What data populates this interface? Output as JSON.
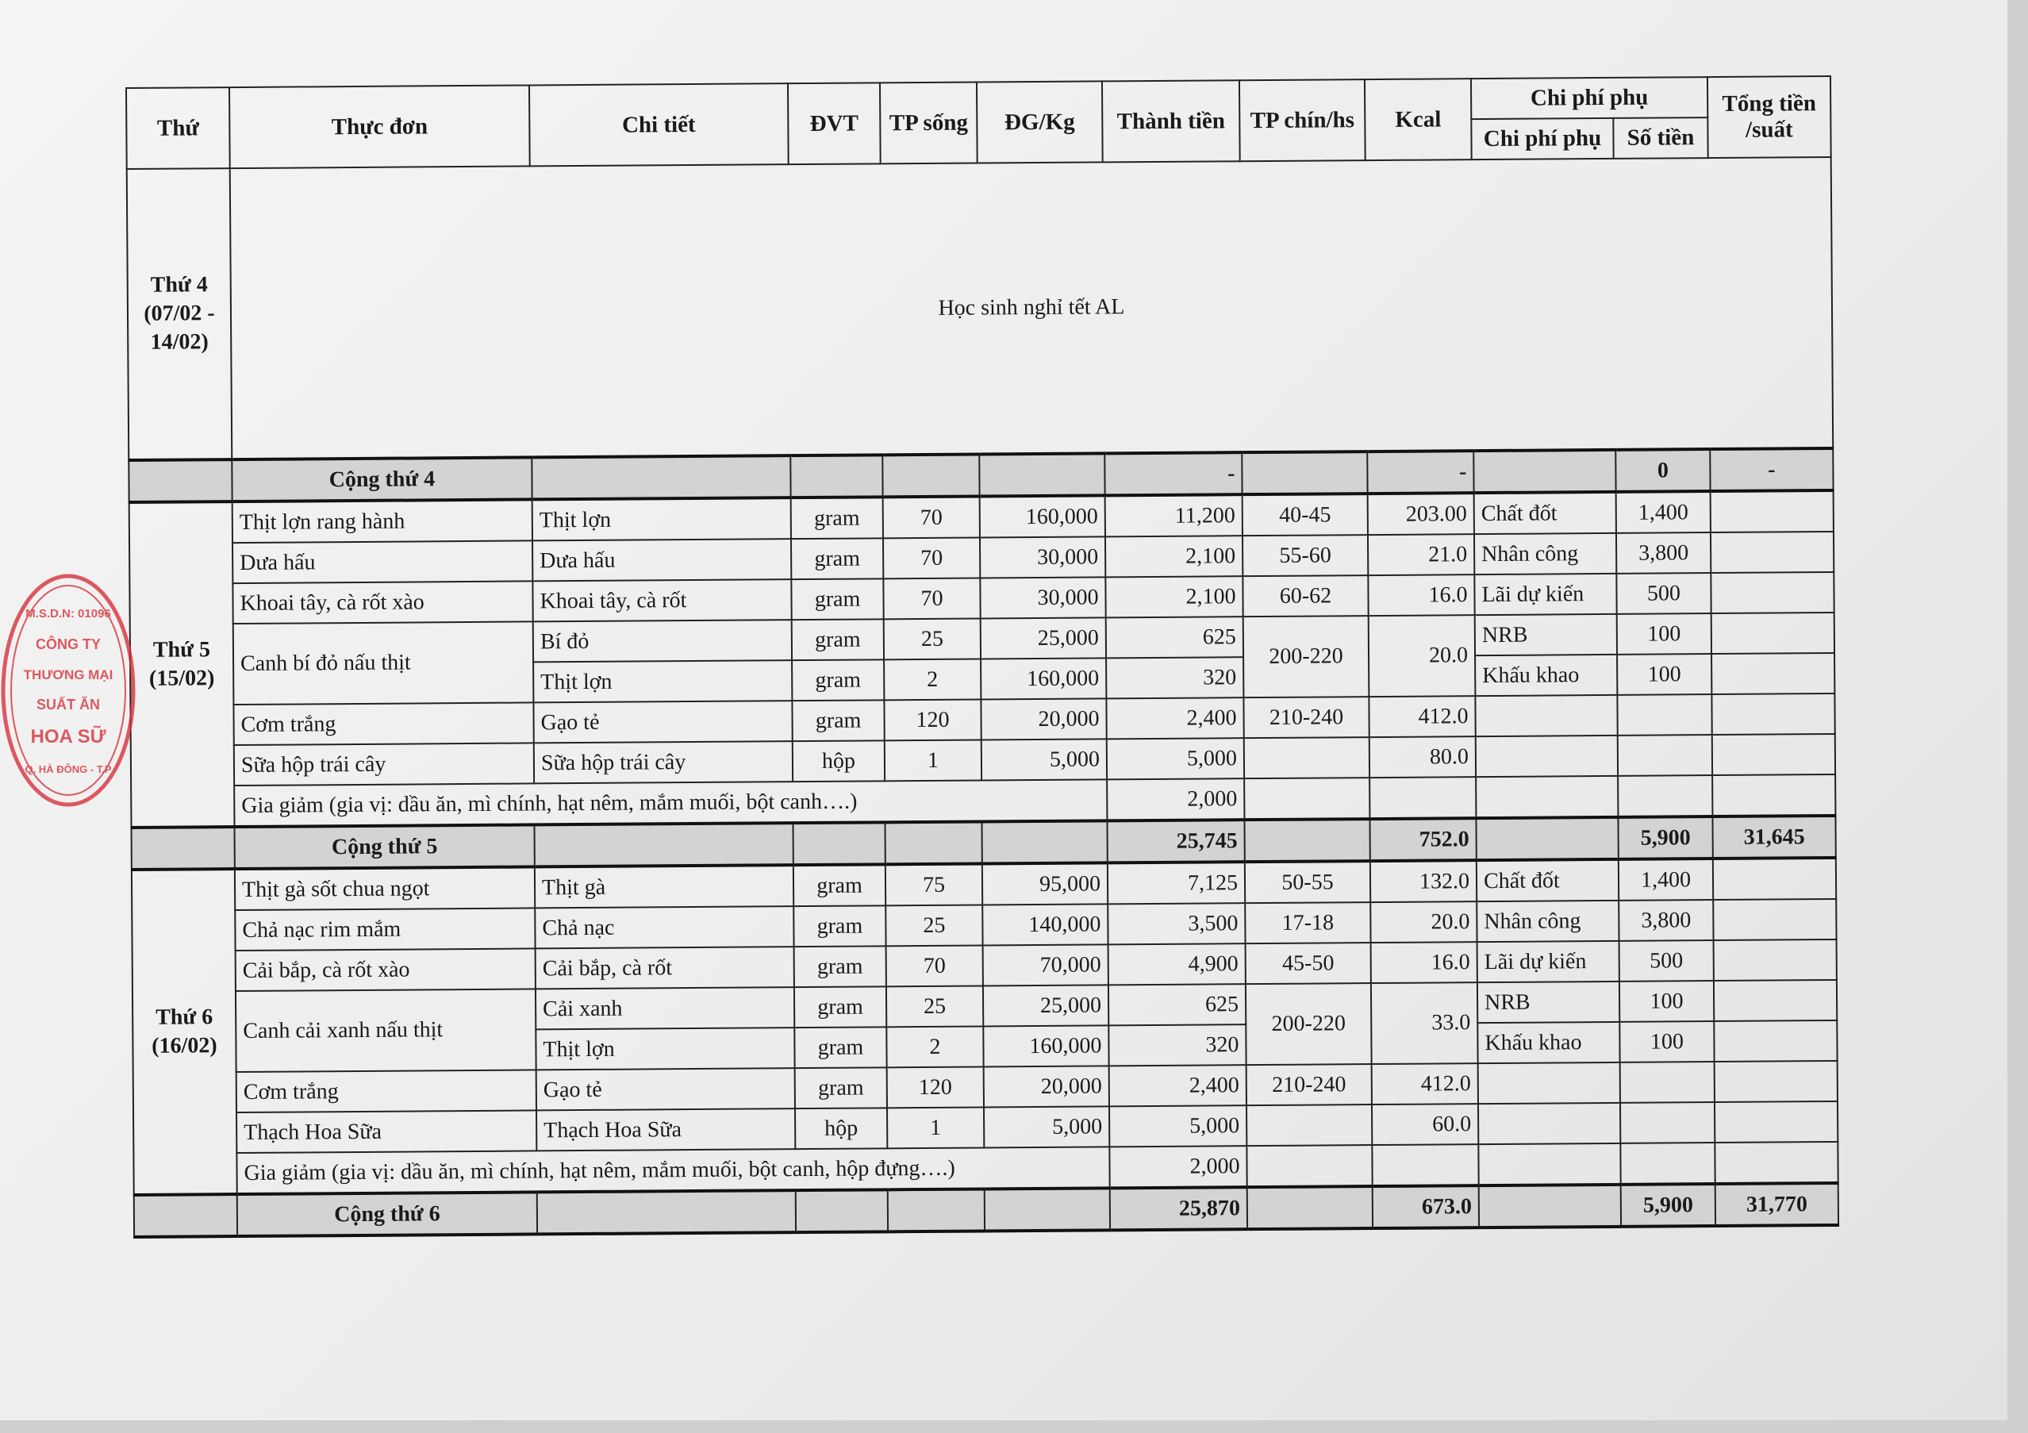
{
  "headers": {
    "thu": "Thứ",
    "thuc_don": "Thực đơn",
    "chi_tiet": "Chi tiết",
    "dvt": "ĐVT",
    "tp_song": "TP sống",
    "dg_kg": "ĐG/Kg",
    "thanh_tien": "Thành tiền",
    "tp_chin": "TP chín/hs",
    "kcal": "Kcal",
    "chi_phi_phu_group": "Chi phí phụ",
    "chi_phi_phu": "Chi phí phụ",
    "so_tien": "Số tiền",
    "tong_tien": "Tổng tiền /suất"
  },
  "days": [
    {
      "day": "Thứ 4 (07/02 - 14/02)",
      "note": "Học sinh nghỉ tết AL",
      "total": {
        "label": "Cộng thứ 4",
        "amount": "-",
        "kcal": "-",
        "extra": "0",
        "grand": "-"
      }
    },
    {
      "day": "Thứ 5 (15/02)",
      "rows": [
        {
          "dish": "Thịt lợn rang hành",
          "detail": "Thịt lợn",
          "unit": "gram",
          "raw": "70",
          "price": "160,000",
          "amount": "11,200",
          "cooked": "40-45",
          "kcal": "203.00",
          "extra_name": "Chất đốt",
          "extra_amount": "1,400"
        },
        {
          "dish": "Dưa hấu",
          "detail": "Dưa hấu",
          "unit": "gram",
          "raw": "70",
          "price": "30,000",
          "amount": "2,100",
          "cooked": "55-60",
          "kcal": "21.0",
          "extra_name": "Nhân công",
          "extra_amount": "3,800"
        },
        {
          "dish": "Khoai tây, cà rốt xào",
          "detail": "Khoai tây, cà rốt",
          "unit": "gram",
          "raw": "70",
          "price": "30,000",
          "amount": "2,100",
          "cooked": "60-62",
          "kcal": "16.0",
          "extra_name": "Lãi dự kiến",
          "extra_amount": "500"
        },
        {
          "dish": "Canh bí đỏ nấu thịt",
          "detail": "Bí đỏ",
          "unit": "gram",
          "raw": "25",
          "price": "25,000",
          "amount": "625",
          "cooked": "200-220",
          "kcal": "20.0",
          "extra_name": "NRB",
          "extra_amount": "100"
        },
        {
          "detail": "Thịt lợn",
          "unit": "gram",
          "raw": "2",
          "price": "160,000",
          "amount": "320",
          "extra_name": "Khấu khao",
          "extra_amount": "100"
        },
        {
          "dish": "Cơm trắng",
          "detail": "Gạo tẻ",
          "unit": "gram",
          "raw": "120",
          "price": "20,000",
          "amount": "2,400",
          "cooked": "210-240",
          "kcal": "412.0",
          "extra_name": "",
          "extra_amount": ""
        },
        {
          "dish": "Sữa hộp trái cây",
          "detail": "Sữa hộp trái cây",
          "unit": "hộp",
          "raw": "1",
          "price": "5,000",
          "amount": "5,000",
          "cooked": "",
          "kcal": "80.0",
          "extra_name": "",
          "extra_amount": ""
        }
      ],
      "seasoning": {
        "label": "Gia giảm (gia vị: dầu ăn, mì chính, hạt nêm, mắm muối, bột canh….)",
        "amount": "2,000"
      },
      "total": {
        "label": "Cộng thứ 5",
        "amount": "25,745",
        "kcal": "752.0",
        "extra": "5,900",
        "grand": "31,645"
      }
    },
    {
      "day": "Thứ 6 (16/02)",
      "rows": [
        {
          "dish": "Thịt gà sốt chua ngọt",
          "detail": "Thịt gà",
          "unit": "gram",
          "raw": "75",
          "price": "95,000",
          "amount": "7,125",
          "cooked": "50-55",
          "kcal": "132.0",
          "extra_name": "Chất đốt",
          "extra_amount": "1,400"
        },
        {
          "dish": "Chả nạc rim mắm",
          "detail": "Chả nạc",
          "unit": "gram",
          "raw": "25",
          "price": "140,000",
          "amount": "3,500",
          "cooked": "17-18",
          "kcal": "20.0",
          "extra_name": "Nhân công",
          "extra_amount": "3,800"
        },
        {
          "dish": "Cải bắp, cà rốt xào",
          "detail": "Cải bắp, cà rốt",
          "unit": "gram",
          "raw": "70",
          "price": "70,000",
          "amount": "4,900",
          "cooked": "45-50",
          "kcal": "16.0",
          "extra_name": "Lãi dự kiến",
          "extra_amount": "500"
        },
        {
          "dish": "Canh cải xanh nấu thịt",
          "detail": "Cải xanh",
          "unit": "gram",
          "raw": "25",
          "price": "25,000",
          "amount": "625",
          "cooked": "200-220",
          "kcal": "33.0",
          "extra_name": "NRB",
          "extra_amount": "100"
        },
        {
          "detail": "Thịt lợn",
          "unit": "gram",
          "raw": "2",
          "price": "160,000",
          "amount": "320",
          "extra_name": "Khấu khao",
          "extra_amount": "100"
        },
        {
          "dish": "Cơm trắng",
          "detail": "Gạo tẻ",
          "unit": "gram",
          "raw": "120",
          "price": "20,000",
          "amount": "2,400",
          "cooked": "210-240",
          "kcal": "412.0",
          "extra_name": "",
          "extra_amount": ""
        },
        {
          "dish": "Thạch Hoa Sữa",
          "detail": "Thạch Hoa Sữa",
          "unit": "hộp",
          "raw": "1",
          "price": "5,000",
          "amount": "5,000",
          "cooked": "",
          "kcal": "60.0",
          "extra_name": "",
          "extra_amount": ""
        }
      ],
      "seasoning": {
        "label": "Gia giảm (gia vị: dầu ăn, mì chính, hạt nêm, mắm muối, bột canh, hộp đựng….)",
        "amount": "2,000"
      },
      "total": {
        "label": "Cộng thứ 6",
        "amount": "25,870",
        "kcal": "673.0",
        "extra": "5,900",
        "grand": "31,770"
      }
    }
  ],
  "stamp": {
    "texts": [
      "M.S.D.N: 01096",
      "CÔNG TY",
      "THƯƠNG MẠI",
      "SUẤT ĂN",
      "HOA SỮ",
      "Q. HÀ ĐÔNG - T.P"
    ],
    "color": "#d8323c"
  }
}
